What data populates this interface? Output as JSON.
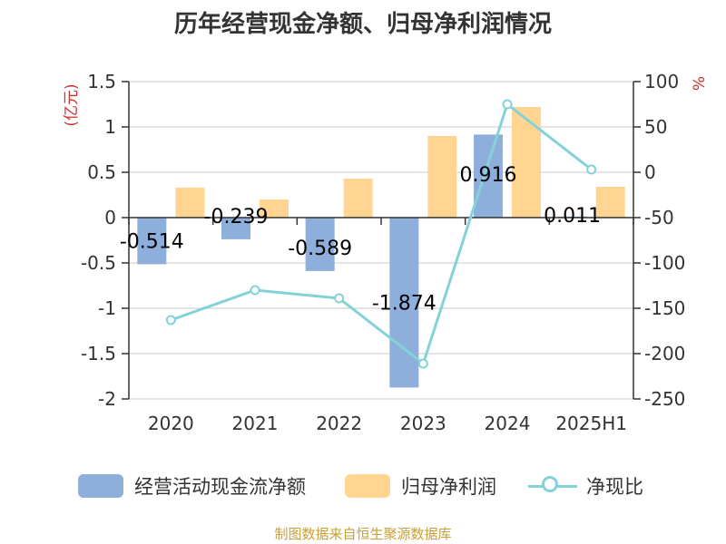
{
  "title": "历年经营现金净额、归母净利润情况",
  "source": "制图数据来自恒生聚源数据库",
  "colors": {
    "cashflow": "#8eaedb",
    "profit": "#ffd591",
    "ratio": "#84d2d8",
    "left_unit": "#d03030",
    "source": "#c8a03a",
    "axis": "#333333",
    "grid": "#c8c8c8"
  },
  "legend": {
    "cashflow": "经营活动现金流净额",
    "profit": "归母净利润",
    "ratio": "净现比"
  },
  "chart_data": {
    "type": "bar",
    "title": "历年经营现金净额、归母净利润情况",
    "categories": [
      "2020",
      "2021",
      "2022",
      "2023",
      "2024",
      "2025H1"
    ],
    "y_left": {
      "unit": "(亿元)",
      "range": [
        -2,
        1.5
      ],
      "ticks": [
        1.5,
        1,
        0.5,
        0,
        -0.5,
        -1,
        -1.5,
        -2
      ],
      "tick_labels": [
        "1.5",
        "1",
        "0.5",
        "0",
        "-0.5",
        "-1",
        "-1.5",
        "-2"
      ]
    },
    "y_right": {
      "unit": "%",
      "range": [
        -250,
        100
      ],
      "ticks": [
        100,
        50,
        0,
        -50,
        -100,
        -150,
        -200,
        -250
      ],
      "tick_labels": [
        "100",
        "50",
        "0",
        "-50",
        "-100",
        "-150",
        "-200",
        "-250"
      ]
    },
    "grid": true,
    "legend_position": "bottom",
    "series": [
      {
        "name": "经营活动现金流净额",
        "type": "bar",
        "axis": "left",
        "values": [
          -0.514,
          -0.239,
          -0.589,
          -1.874,
          0.916,
          0.011
        ],
        "labels": [
          "-0.514",
          "-0.239",
          "-0.589",
          "-1.874",
          "0.916",
          "0.011"
        ]
      },
      {
        "name": "归母净利润",
        "type": "bar",
        "axis": "left",
        "values": [
          0.33,
          0.2,
          0.43,
          0.9,
          1.22,
          0.34
        ]
      },
      {
        "name": "净现比",
        "type": "line",
        "axis": "right",
        "values": [
          -163,
          -130,
          -139,
          -211,
          75,
          3
        ]
      }
    ]
  }
}
